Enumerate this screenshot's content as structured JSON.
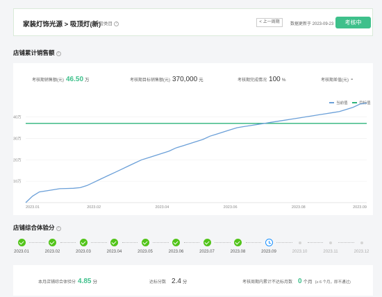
{
  "header": {
    "title": "家装灯饰光源 > 吸顶灯(新)",
    "scope_label": "考核主营类目",
    "prev_label": "< 上一周期",
    "update_text": "数据更新于 2023-09-23",
    "eval_button": "考核中"
  },
  "sales_section": {
    "title": "店铺累计销售额",
    "metrics": [
      {
        "label": "考核期销售额(元)",
        "value": "46.50",
        "unit": "万"
      },
      {
        "label": "考核期目标销售额(元)",
        "value": "370,000",
        "unit": "元"
      },
      {
        "label": "考核期完成情况",
        "value": "100",
        "unit": "%"
      },
      {
        "label": "考核期差值(元)",
        "value": "-",
        "unit": ""
      }
    ]
  },
  "chart_data": {
    "type": "line",
    "legend": [
      "当前值",
      "目标值"
    ],
    "legend_colors": [
      "#6a9fd8",
      "#2bb37a"
    ],
    "y_ticks": [
      "10万",
      "20万",
      "30万",
      "40万"
    ],
    "x_ticks": [
      "2023.01",
      "2023.02",
      "2023.04",
      "2023.06",
      "2023.08",
      "2023.09"
    ],
    "ylim": [
      0,
      46
    ],
    "target_value": 37,
    "series": [
      {
        "name": "当前值",
        "x": [
          0,
          0.2,
          0.4,
          0.8,
          1.0,
          1.2,
          1.4,
          1.6,
          1.8,
          2.0,
          2.2,
          2.4,
          2.6,
          2.8,
          3.0,
          3.2,
          3.4,
          3.6,
          3.8,
          4.0,
          4.2,
          4.4,
          4.6,
          4.8,
          5.0,
          5.2,
          5.4,
          5.6,
          5.8,
          6.0,
          6.2,
          6.4,
          6.6,
          6.8,
          7.0,
          7.2,
          7.4,
          7.6,
          7.8,
          8.0,
          8.2,
          8.4,
          8.6,
          8.8,
          9.0,
          9.2,
          9.4,
          9.6,
          9.8,
          10.0
        ],
        "values": [
          0,
          3,
          5,
          6,
          6.5,
          6.6,
          6.7,
          7,
          8,
          9.5,
          11,
          12.5,
          14,
          15.5,
          17,
          18.5,
          20,
          21,
          22,
          23,
          24,
          25.5,
          26.5,
          27.5,
          28.5,
          29.5,
          31,
          32,
          33,
          34,
          35,
          35.5,
          36,
          36.5,
          37,
          37.5,
          38,
          38.5,
          39,
          39.5,
          40,
          40.5,
          41,
          41.5,
          42,
          42.5,
          43.5,
          44.5,
          46,
          46.5
        ]
      }
    ]
  },
  "score_section": {
    "title": "店铺综合体验分",
    "timeline": [
      {
        "label": "2023.01",
        "status": "done"
      },
      {
        "label": "2023.02",
        "status": "done"
      },
      {
        "label": "2023.03",
        "status": "done"
      },
      {
        "label": "2023.04",
        "status": "done"
      },
      {
        "label": "2023.05",
        "status": "done"
      },
      {
        "label": "2023.06",
        "status": "done"
      },
      {
        "label": "2023.07",
        "status": "done"
      },
      {
        "label": "2023.08",
        "status": "done"
      },
      {
        "label": "2023.09",
        "status": "current"
      },
      {
        "label": "2023.10",
        "status": "future"
      },
      {
        "label": "2023.11",
        "status": "future"
      },
      {
        "label": "2023.12",
        "status": "future"
      }
    ],
    "score_metrics": [
      {
        "label": "本月店铺综合体验分",
        "value": "4.85",
        "unit": "分"
      },
      {
        "label": "达标分数",
        "value": "2.4",
        "unit": "分"
      },
      {
        "label": "考核周期内累计不达标月数",
        "value": "0",
        "unit": "个月",
        "note": "(≥ 6 个月，即不通过)"
      }
    ]
  }
}
